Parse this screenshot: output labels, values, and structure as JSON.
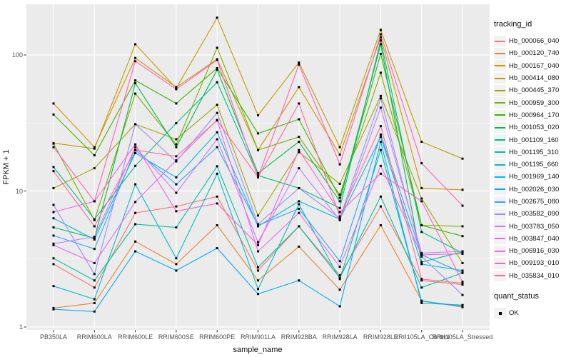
{
  "figure": {
    "background": "#FFFFFF",
    "panel_background": "#EBEBEB",
    "grid_color": "#FFFFFF",
    "tick_color": "#333333",
    "axis_text_color": "#4D4D4D",
    "point_color": "#000000"
  },
  "chart_data": {
    "type": "line",
    "title": "",
    "xlabel": "sample_name",
    "ylabel": "FPKM + 1",
    "y_scale": "log10",
    "y_ticks": [
      "1",
      "10",
      "100"
    ],
    "y_tick_values": [
      1,
      10,
      100
    ],
    "y_minor_values": [
      3.1623,
      31.623
    ],
    "ylim": [
      1,
      236
    ],
    "grid": true,
    "marker": "black-square",
    "categories": [
      "PB350LA",
      "RRIM600LA",
      "RRIM600LE",
      "RRIM600SE",
      "RRIM600PE",
      "RRIM901LA",
      "RRIM928BA",
      "RRIM928LA",
      "RRIM928LE",
      "RRII105LA_Control",
      "RRII105LA_Stressed"
    ],
    "legend": {
      "title": "tracking_id",
      "position": "right"
    },
    "legend2": {
      "title": "quant_status",
      "items": [
        {
          "label": "OK",
          "symbol": "black-square"
        }
      ]
    },
    "series": [
      {
        "name": "Hb_000066_040",
        "color": "#F8766D",
        "values": [
          2.9,
          1.95,
          6.9,
          7.7,
          9.1,
          2.6,
          5.5,
          2.4,
          7.7,
          2.2,
          2.05
        ]
      },
      {
        "name": "Hb_000120_740",
        "color": "#EA8331",
        "values": [
          1.38,
          1.5,
          4.25,
          2.9,
          5.6,
          2.2,
          3.9,
          1.88,
          5.6,
          1.56,
          1.4
        ]
      },
      {
        "name": "Hb_000167_040",
        "color": "#D89000",
        "values": [
          44,
          21,
          95,
          58,
          93,
          20,
          58,
          18.5,
          135,
          10.5,
          10.2
        ]
      },
      {
        "name": "Hb_000414_080",
        "color": "#C09B00",
        "values": [
          22.5,
          20.5,
          120,
          57,
          188,
          36,
          88,
          21,
          153,
          23,
          17.3
        ]
      },
      {
        "name": "Hb_000445_370",
        "color": "#A3A500",
        "values": [
          10.5,
          14.7,
          31,
          24,
          43,
          6.6,
          19.3,
          11.3,
          50,
          8.8,
          2.95
        ]
      },
      {
        "name": "Hb_000959_300",
        "color": "#7CAE00",
        "values": [
          22.3,
          6.1,
          52,
          22,
          113,
          20,
          25,
          9.4,
          74,
          5.6,
          5.5
        ]
      },
      {
        "name": "Hb_000964_170",
        "color": "#39B600",
        "values": [
          36.5,
          18.3,
          65,
          44,
          80,
          26.5,
          33.7,
          8.9,
          102,
          5.6,
          4.66
        ]
      },
      {
        "name": "Hb_001053_020",
        "color": "#00BB4E",
        "values": [
          5.4,
          4.5,
          62,
          21,
          78,
          13.5,
          23,
          8.4,
          120,
          3.0,
          3.57
        ]
      },
      {
        "name": "Hb_001109_160",
        "color": "#00BF7D",
        "values": [
          15,
          6.2,
          15.3,
          31.5,
          63,
          13,
          10.5,
          7.5,
          128,
          5.0,
          3.5
        ]
      },
      {
        "name": "Hb_001195_310",
        "color": "#00C1A3",
        "values": [
          3.2,
          2.2,
          5.7,
          5.4,
          15.2,
          2.75,
          5.5,
          2.3,
          9.1,
          1.95,
          2.5
        ]
      },
      {
        "name": "Hb_001195_660",
        "color": "#00BFC4",
        "values": [
          2.0,
          1.6,
          11.2,
          3.2,
          13.4,
          1.9,
          8.0,
          2.25,
          20,
          1.55,
          1.42
        ]
      },
      {
        "name": "Hb_001969_140",
        "color": "#00BAE0",
        "values": [
          6.3,
          4.4,
          19,
          12.6,
          27,
          5.5,
          8.4,
          6.2,
          25,
          2.9,
          2.6
        ]
      },
      {
        "name": "Hb_002026_030",
        "color": "#00B0F6",
        "values": [
          1.35,
          1.3,
          3.6,
          2.6,
          3.8,
          1.75,
          2.2,
          1.42,
          23,
          1.5,
          1.45
        ]
      },
      {
        "name": "Hb_002675_080",
        "color": "#35A2FF",
        "values": [
          4.7,
          3.75,
          20,
          11.2,
          21,
          5.6,
          7.4,
          3.05,
          26,
          3.4,
          2.5
        ]
      },
      {
        "name": "Hb_003582_090",
        "color": "#9590FF",
        "values": [
          7.9,
          2.45,
          31,
          16.5,
          37.5,
          5.7,
          10.5,
          6.3,
          48,
          3.3,
          1.72
        ]
      },
      {
        "name": "Hb_003783_050",
        "color": "#C77CFF",
        "values": [
          4.1,
          4.6,
          21,
          9.7,
          24,
          4.2,
          14.7,
          6.1,
          41,
          3.5,
          3.6
        ]
      },
      {
        "name": "Hb_003847_040",
        "color": "#E76BF3",
        "values": [
          4.0,
          2.95,
          8.3,
          16.8,
          33.3,
          3.6,
          6.9,
          2.77,
          15.3,
          3.4,
          3.45
        ]
      },
      {
        "name": "Hb_006916_030",
        "color": "#FA62DB",
        "values": [
          7.0,
          8.4,
          22,
          7.1,
          8.1,
          4.0,
          20,
          7.0,
          13.4,
          8.4,
          2.15
        ]
      },
      {
        "name": "Hb_009193_010",
        "color": "#FF62BC",
        "values": [
          21,
          8.4,
          90,
          56,
          92,
          12.6,
          85,
          15.7,
          142,
          16,
          7.8
        ]
      },
      {
        "name": "Hb_035834_010",
        "color": "#FF6A98",
        "values": [
          14,
          5.5,
          20,
          18,
          33,
          12.6,
          44,
          6.5,
          30,
          2.25,
          2.1
        ]
      }
    ]
  }
}
